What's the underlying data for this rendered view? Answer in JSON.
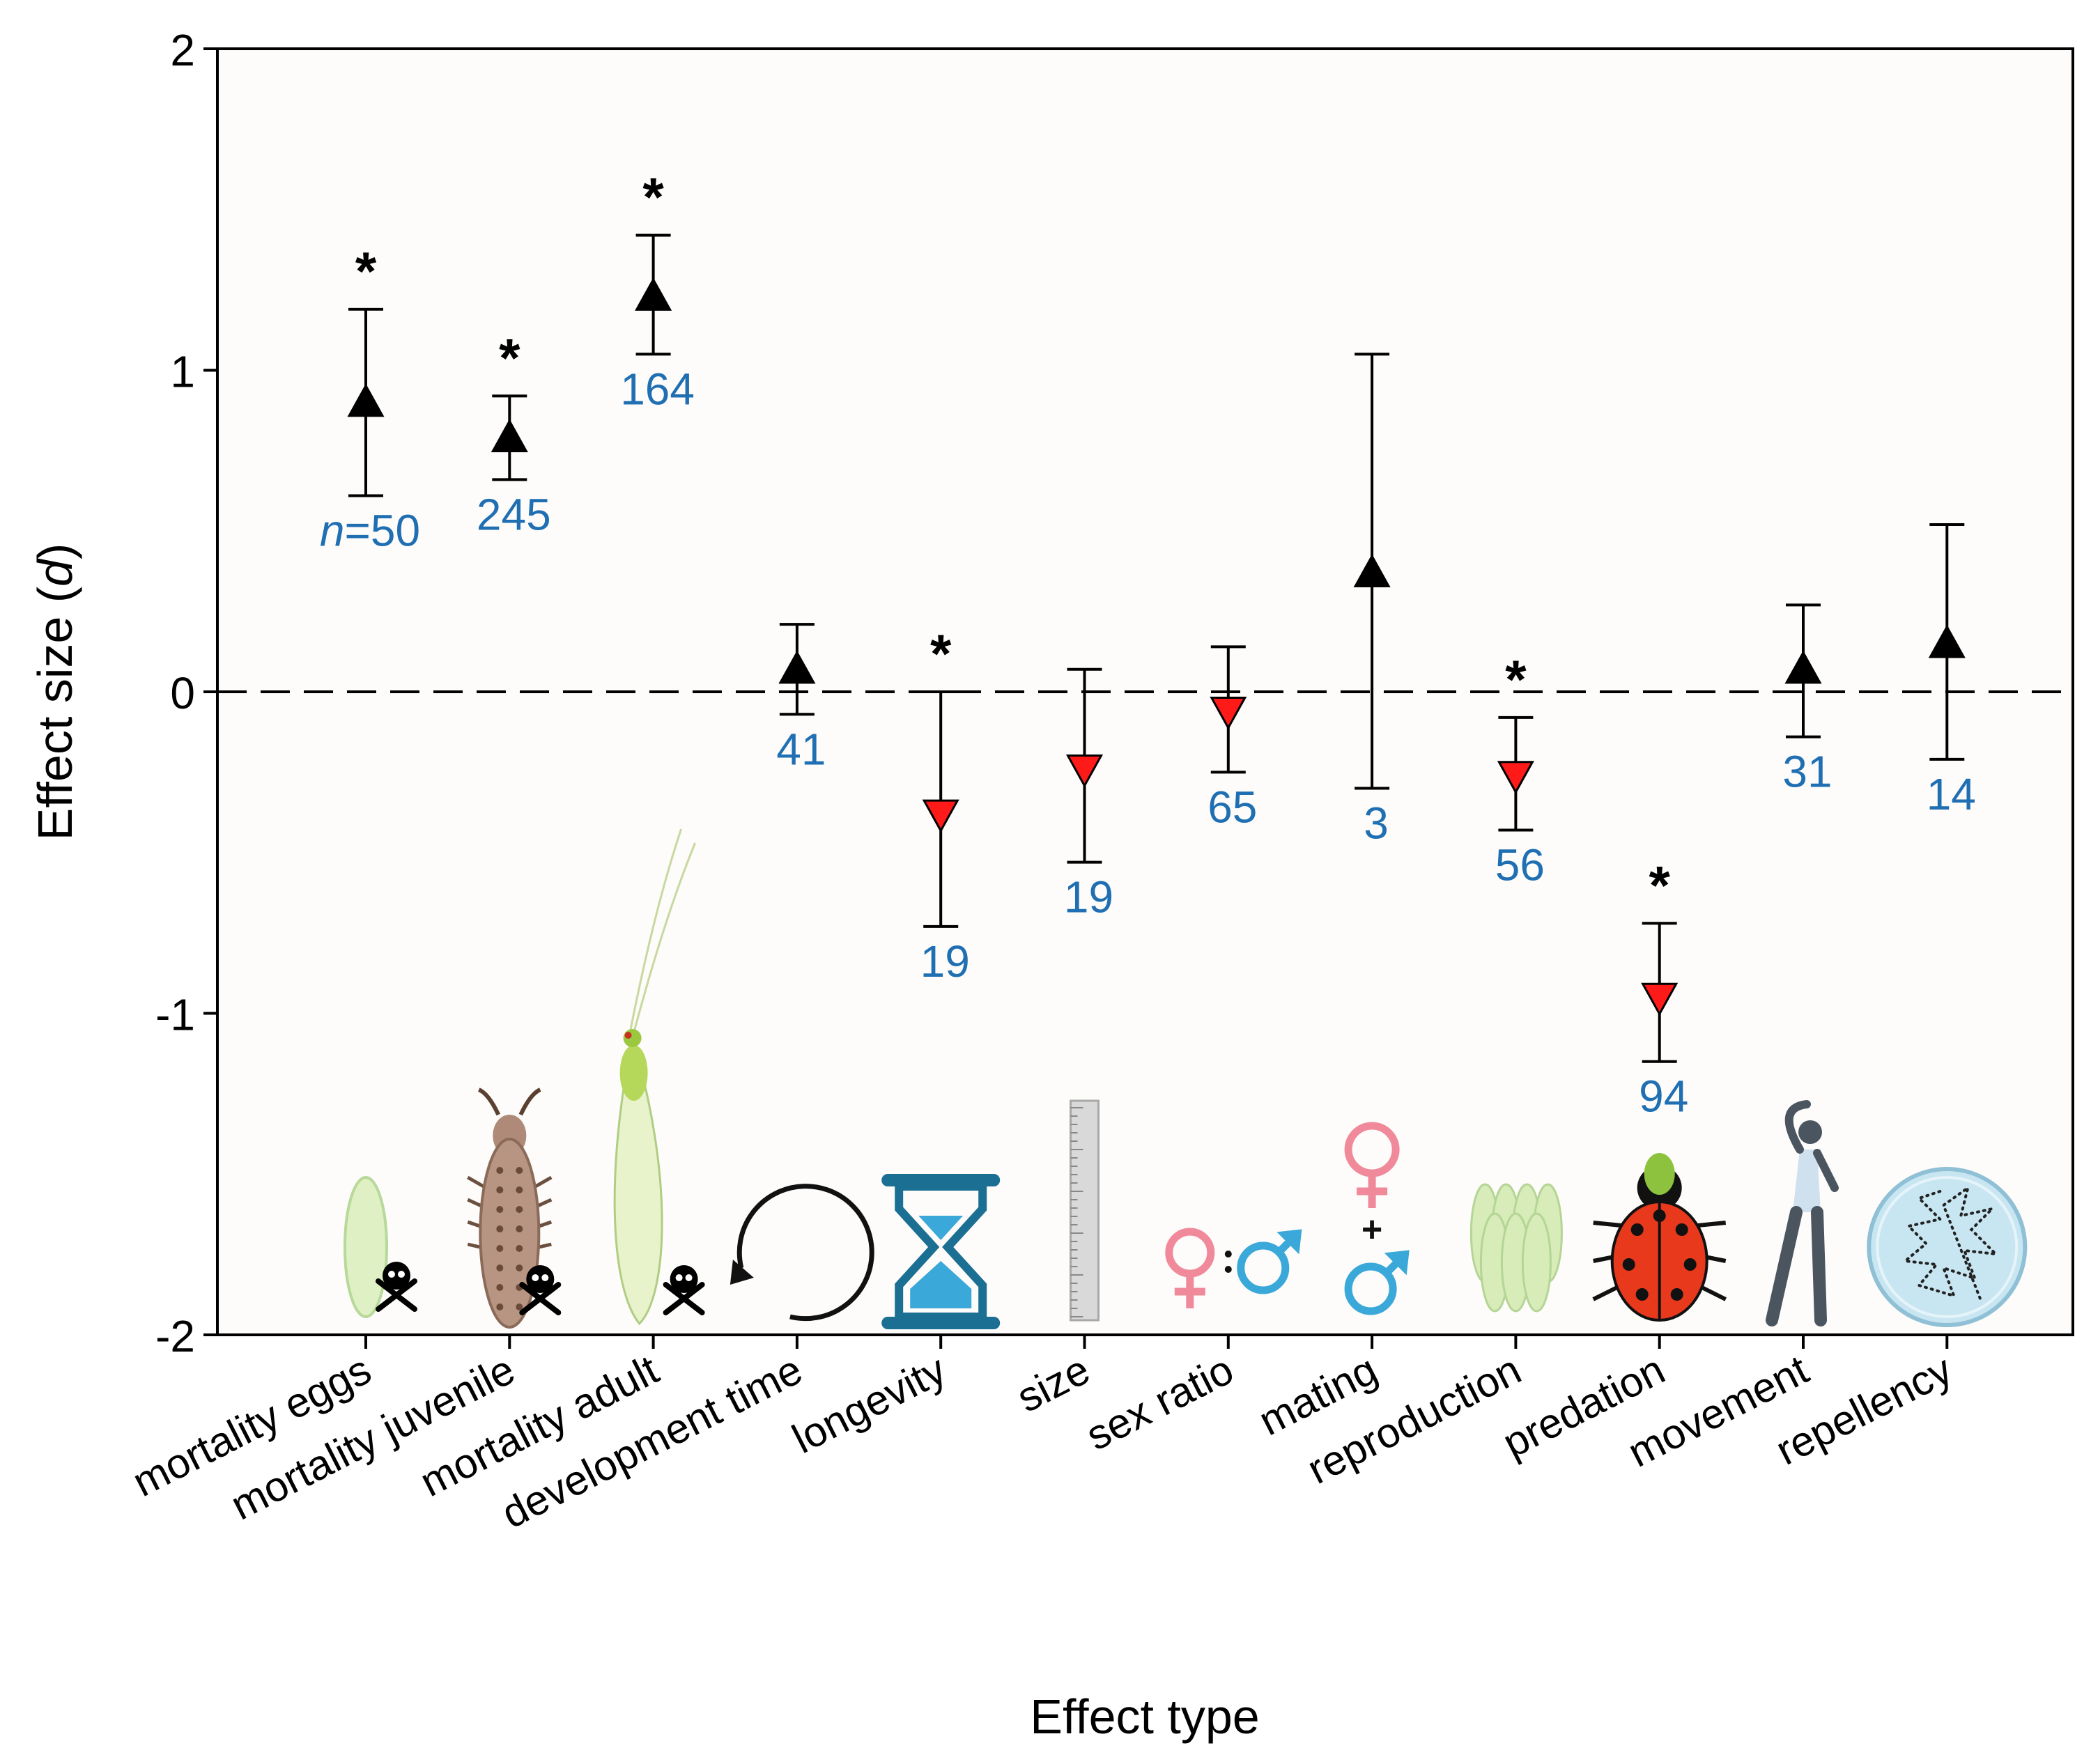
{
  "chart_data": {
    "type": "scatter",
    "title": "",
    "xlabel": "Effect type",
    "ylabel_prefix": "Effect size (",
    "ylabel_var": "d",
    "ylabel_suffix": ")",
    "ylim": [
      -2,
      2
    ],
    "yticks": [
      -2,
      -1,
      0,
      1,
      2
    ],
    "ytick_labels": [
      "-2",
      "-1",
      "0",
      "1",
      "2"
    ],
    "reference_line": 0,
    "n_prefix": "n",
    "significance_symbol": "*",
    "colors": {
      "positive_marker": "#000000",
      "negative_marker": "#ff1a1a",
      "n_label": "#1f6fb2",
      "female": "#f08a9a",
      "male": "#3aa8d8",
      "hourglass": "#1a6f93"
    },
    "categories": [
      "mortality eggs",
      "mortality juvenile",
      "mortality adult",
      "development time",
      "longevity",
      "size",
      "sex ratio",
      "mating",
      "reproduction",
      "predation",
      "movement",
      "repellency"
    ],
    "icons": [
      "egg-icon",
      "larva-icon",
      "lacewing-adult-icon",
      "cycle-arrow-icon",
      "hourglass-icon",
      "ruler-icon",
      "sex-ratio-icon",
      "mating-icon",
      "egg-cluster-icon",
      "ladybird-icon",
      "dancer-icon",
      "petri-dish-icon"
    ],
    "points": [
      {
        "category": "mortality eggs",
        "value": 0.9,
        "ci": [
          0.61,
          1.19
        ],
        "n": "=50",
        "significant": true
      },
      {
        "category": "mortality juvenile",
        "value": 0.79,
        "ci": [
          0.66,
          0.92
        ],
        "n": "245",
        "significant": true
      },
      {
        "category": "mortality adult",
        "value": 1.23,
        "ci": [
          1.05,
          1.42
        ],
        "n": "164",
        "significant": true
      },
      {
        "category": "development time",
        "value": 0.07,
        "ci": [
          -0.07,
          0.21
        ],
        "n": "41",
        "significant": false
      },
      {
        "category": "longevity",
        "value": -0.38,
        "ci": [
          -0.73,
          0.0
        ],
        "n": "19",
        "significant": true
      },
      {
        "category": "size",
        "value": -0.24,
        "ci": [
          -0.53,
          0.07
        ],
        "n": "19",
        "significant": false
      },
      {
        "category": "sex ratio",
        "value": -0.06,
        "ci": [
          -0.25,
          0.14
        ],
        "n": "65",
        "significant": false
      },
      {
        "category": "mating",
        "value": 0.37,
        "ci": [
          -0.3,
          1.05
        ],
        "n": "3",
        "significant": false
      },
      {
        "category": "reproduction",
        "value": -0.26,
        "ci": [
          -0.43,
          -0.08
        ],
        "n": "56",
        "significant": true
      },
      {
        "category": "predation",
        "value": -0.95,
        "ci": [
          -1.15,
          -0.72
        ],
        "n": "94",
        "significant": true
      },
      {
        "category": "movement",
        "value": 0.07,
        "ci": [
          -0.14,
          0.27
        ],
        "n": "31",
        "significant": false
      },
      {
        "category": "repellency",
        "value": 0.15,
        "ci": [
          -0.21,
          0.52
        ],
        "n": "14",
        "significant": false
      }
    ]
  }
}
